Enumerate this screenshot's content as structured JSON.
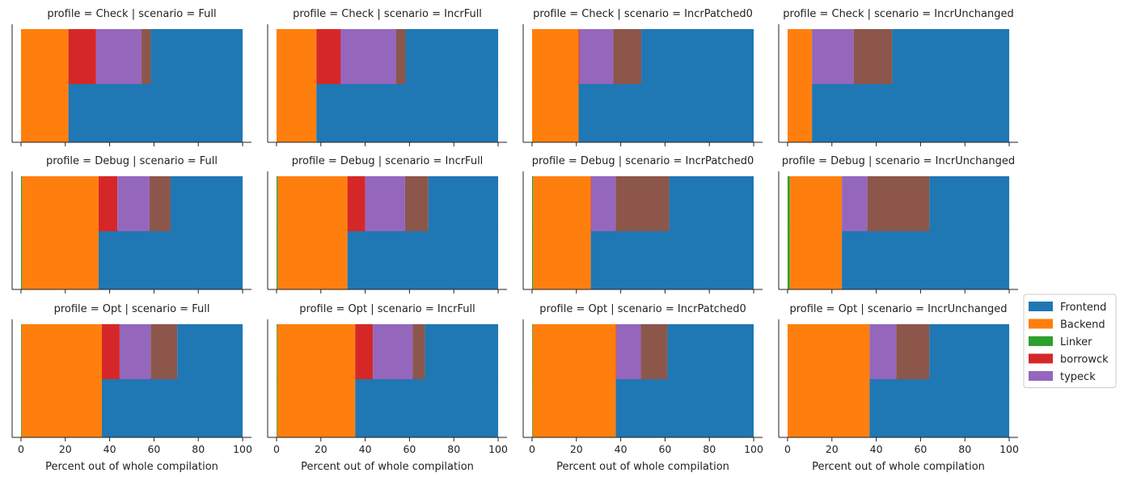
{
  "chart_data": {
    "type": "bar",
    "orientation": "horizontal",
    "facet_title_template": "profile = {row} | scenario = {col}",
    "rows": [
      "Check",
      "Debug",
      "Opt"
    ],
    "cols": [
      "Full",
      "IncrFull",
      "IncrPatched0",
      "IncrUnchanged"
    ],
    "xlabel": "Percent out of whole compilation",
    "xlim": [
      -4,
      104
    ],
    "xticks": [
      0,
      20,
      40,
      60,
      80,
      100
    ],
    "legend_position": "right",
    "legend": [
      "Frontend",
      "Backend",
      "Linker",
      "borrowck",
      "typeck"
    ],
    "colors": {
      "Frontend": "#1f77b4",
      "Backend": "#ff7f0e",
      "Linker": "#2ca02c",
      "borrowck": "#d62728",
      "typeck": "#9467bd",
      "other": "#8c564b"
    },
    "panels": [
      {
        "profile": "Check",
        "scenario": "Full",
        "linker": 0.0,
        "backend": 21.4,
        "frontend": 78.6,
        "borrowck": 12.5,
        "typeck": 20.5,
        "other": 4.2
      },
      {
        "profile": "Check",
        "scenario": "IncrFull",
        "linker": 0.0,
        "backend": 18.0,
        "frontend": 82.0,
        "borrowck": 11.0,
        "typeck": 25.0,
        "other": 4.2
      },
      {
        "profile": "Check",
        "scenario": "IncrPatched0",
        "linker": 0.0,
        "backend": 21.0,
        "frontend": 79.0,
        "borrowck": 0.4,
        "typeck": 15.3,
        "other": 12.6
      },
      {
        "profile": "Check",
        "scenario": "IncrUnchanged",
        "linker": 0.0,
        "backend": 11.0,
        "frontend": 89.0,
        "borrowck": 0.0,
        "typeck": 18.8,
        "other": 17.4
      },
      {
        "profile": "Debug",
        "scenario": "Full",
        "linker": 0.5,
        "backend": 34.5,
        "frontend": 65.0,
        "borrowck": 8.5,
        "typeck": 14.5,
        "other": 9.5
      },
      {
        "profile": "Debug",
        "scenario": "IncrFull",
        "linker": 0.5,
        "backend": 31.5,
        "frontend": 68.0,
        "borrowck": 8.0,
        "typeck": 18.0,
        "other": 10.5
      },
      {
        "profile": "Debug",
        "scenario": "IncrPatched0",
        "linker": 0.5,
        "backend": 26.0,
        "frontend": 73.5,
        "borrowck": 0.2,
        "typeck": 11.0,
        "other": 24.2
      },
      {
        "profile": "Debug",
        "scenario": "IncrUnchanged",
        "linker": 1.0,
        "backend": 23.5,
        "frontend": 75.5,
        "borrowck": 0.0,
        "typeck": 11.5,
        "other": 28.0
      },
      {
        "profile": "Opt",
        "scenario": "Full",
        "linker": 0.3,
        "backend": 36.2,
        "frontend": 63.5,
        "borrowck": 8.0,
        "typeck": 14.0,
        "other": 12.0
      },
      {
        "profile": "Opt",
        "scenario": "IncrFull",
        "linker": 0.3,
        "backend": 35.2,
        "frontend": 64.5,
        "borrowck": 8.0,
        "typeck": 18.0,
        "other": 5.5
      },
      {
        "profile": "Opt",
        "scenario": "IncrPatched0",
        "linker": 0.3,
        "backend": 37.5,
        "frontend": 62.2,
        "borrowck": 0.3,
        "typeck": 11.0,
        "other": 12.0
      },
      {
        "profile": "Opt",
        "scenario": "IncrUnchanged",
        "linker": 0.0,
        "backend": 37.0,
        "frontend": 63.0,
        "borrowck": 0.0,
        "typeck": 12.0,
        "other": 15.0
      }
    ]
  }
}
